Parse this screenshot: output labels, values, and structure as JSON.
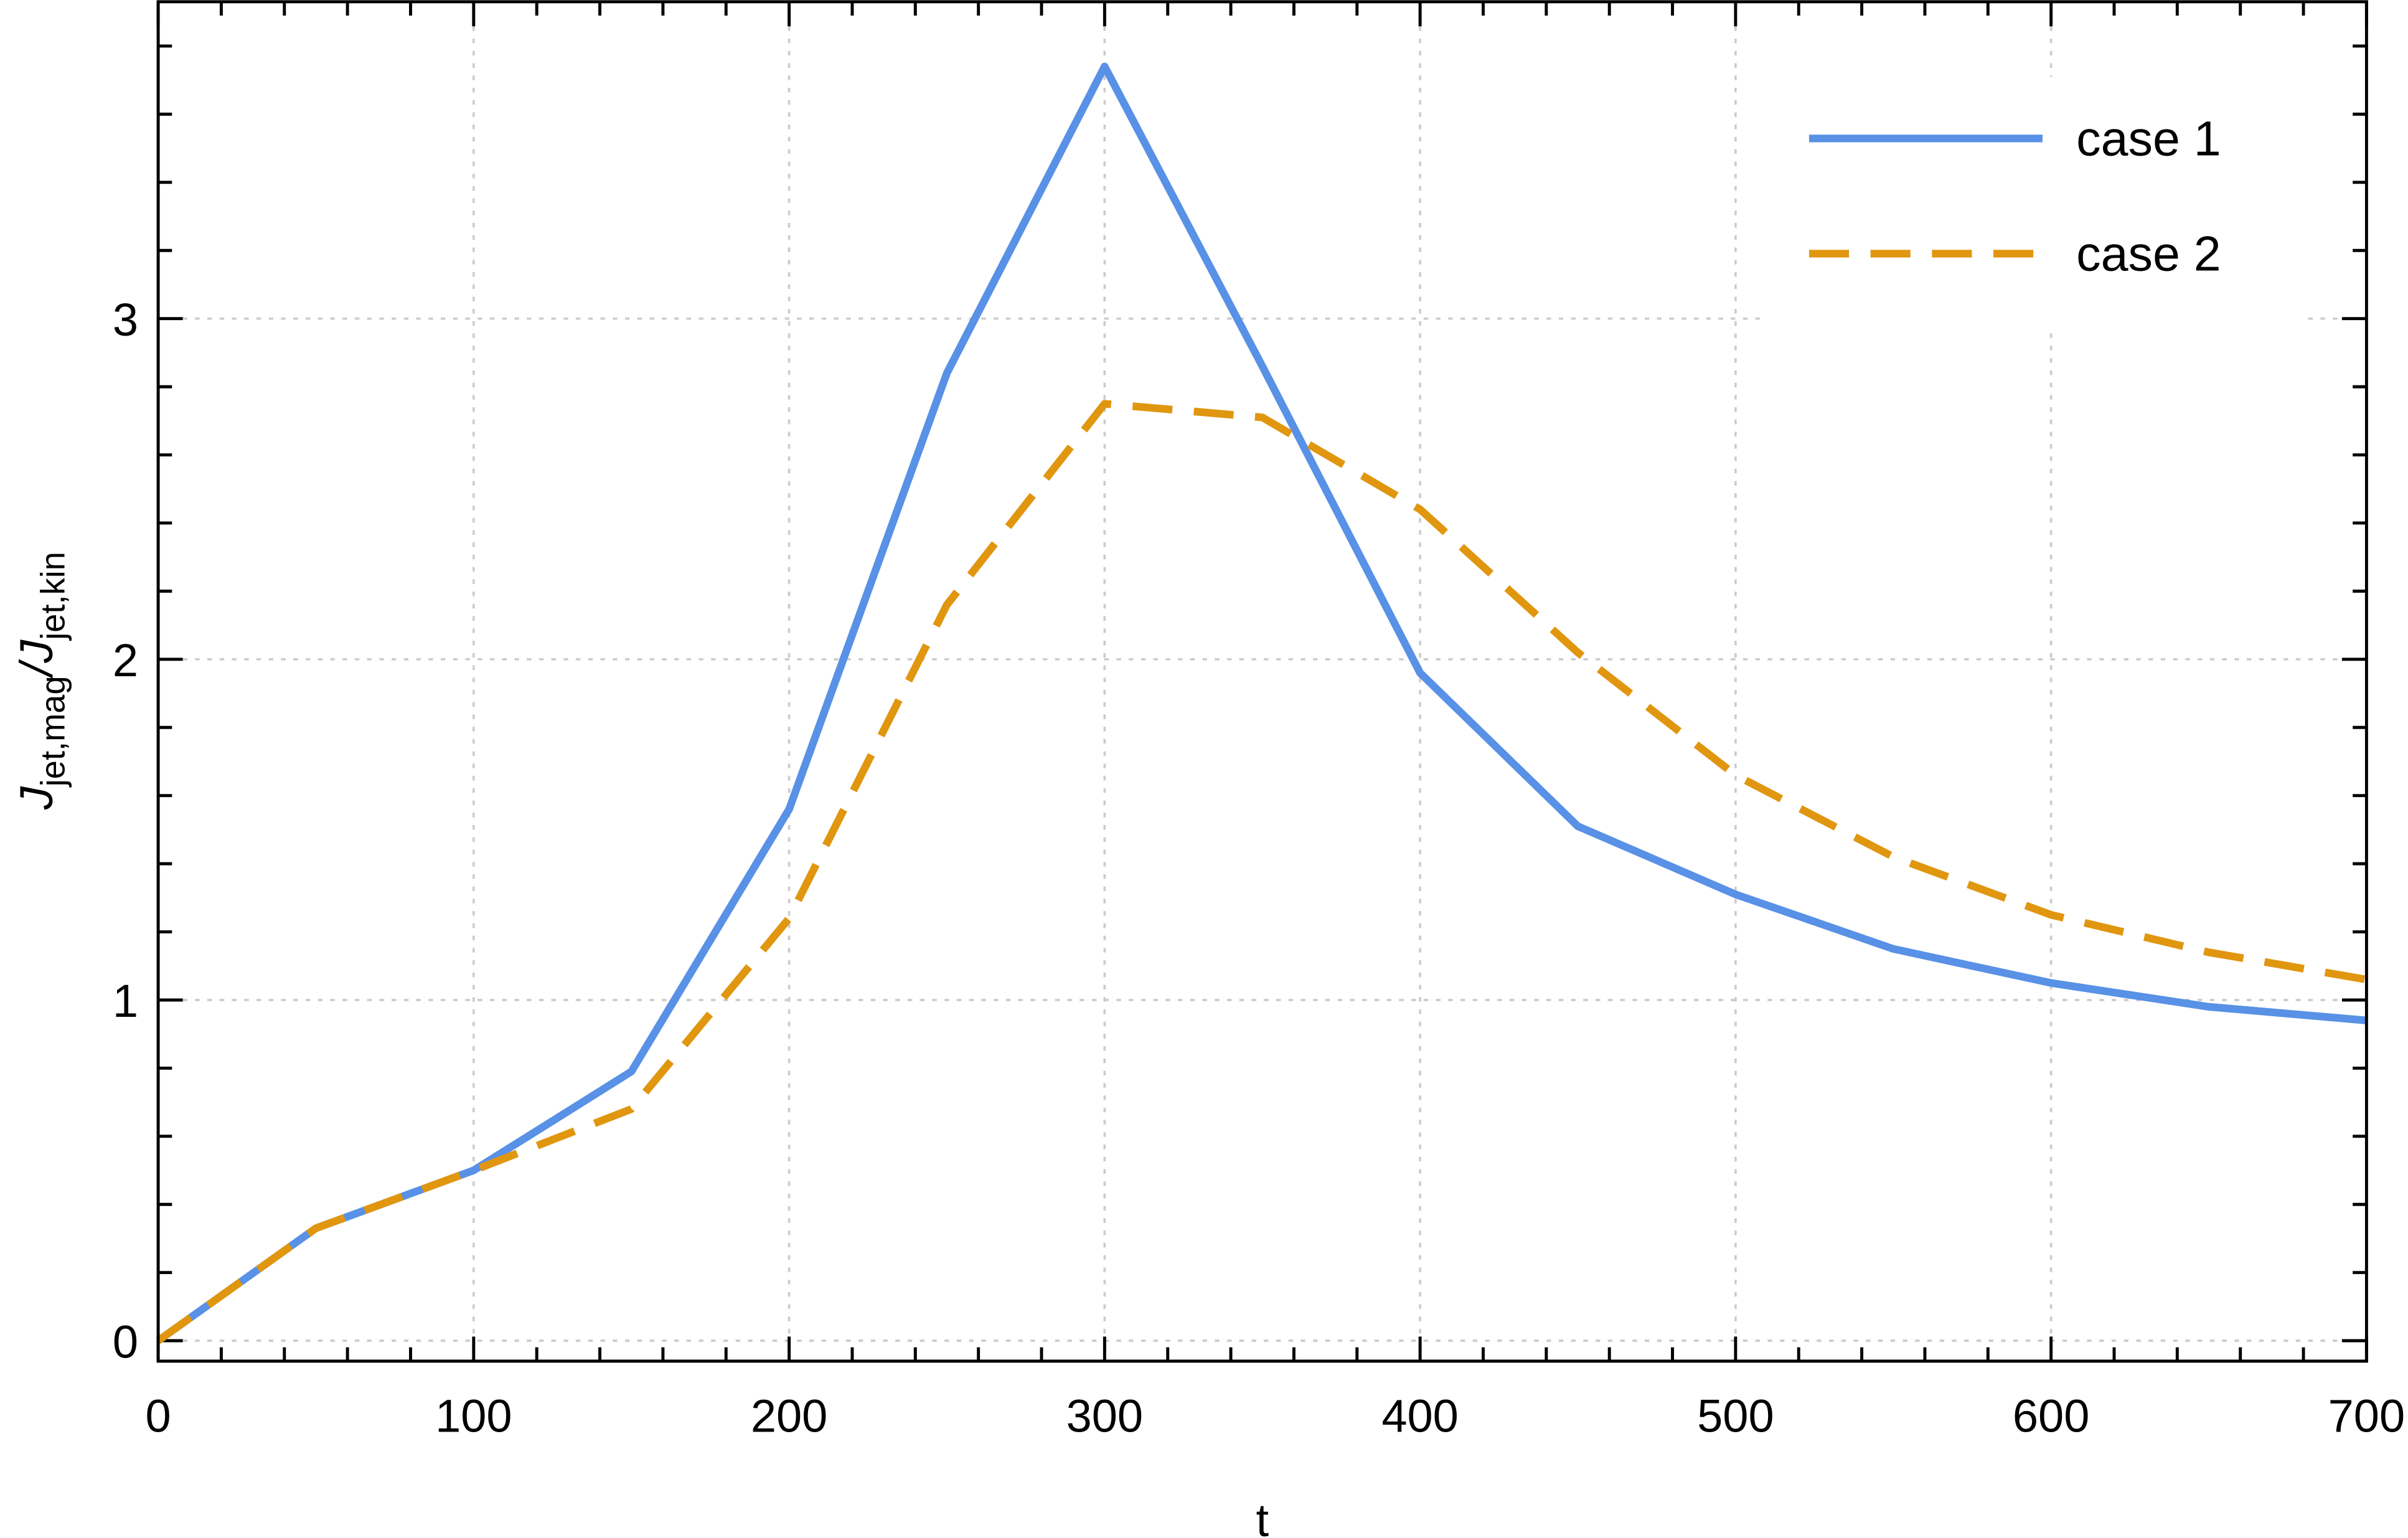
{
  "chart_data": {
    "type": "line",
    "title": "",
    "xlabel": "t",
    "ylabel_main": "J",
    "ylabel_sub1": "jet,mag",
    "ylabel_slash": "/J",
    "ylabel_sub2": "jet,kin",
    "ylabel": "J_jet,mag/J_jet,kin",
    "xlim": [
      0,
      700
    ],
    "ylim": [
      -0.06,
      3.93
    ],
    "xticks": [
      0,
      100,
      200,
      300,
      400,
      500,
      600,
      700
    ],
    "yticks": [
      0,
      1,
      2,
      3
    ],
    "grid": true,
    "legend_position": "top-right",
    "x": [
      0,
      50,
      100,
      150,
      200,
      250,
      300,
      350,
      400,
      450,
      500,
      550,
      600,
      650,
      700
    ],
    "series": [
      {
        "name": "case 1",
        "color": "#5891e6",
        "style": "solid",
        "values": [
          0,
          0.33,
          0.5,
          0.79,
          1.56,
          2.84,
          3.74,
          2.86,
          1.96,
          1.51,
          1.31,
          1.15,
          1.05,
          0.98,
          0.94
        ]
      },
      {
        "name": "case 2",
        "color": "#e0960f",
        "style": "dashed",
        "values": [
          0,
          0.33,
          0.5,
          0.68,
          1.24,
          2.16,
          2.75,
          2.71,
          2.44,
          2.02,
          1.66,
          1.42,
          1.25,
          1.14,
          1.06
        ]
      }
    ]
  }
}
